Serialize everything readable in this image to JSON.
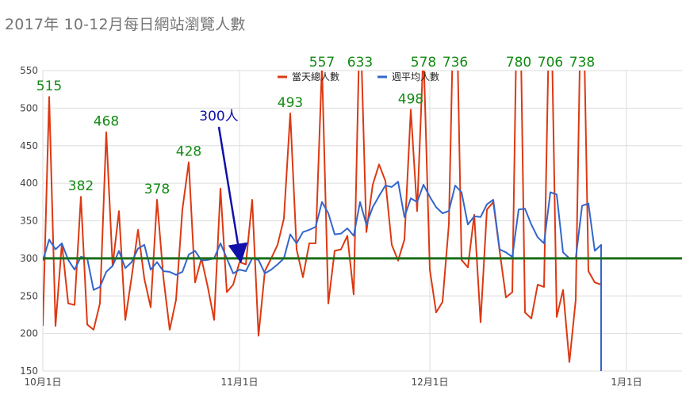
{
  "chart_data": {
    "type": "line",
    "title": "2017年 10-12月每日網站瀏覽人數",
    "ylim": [
      150,
      550
    ],
    "y_ticks": [
      150,
      200,
      250,
      300,
      350,
      400,
      450,
      500,
      550
    ],
    "x_range": [
      "2017-10-01",
      "2018-01-05"
    ],
    "x_ticks": [
      {
        "date": "2017-10-01",
        "label": "10月1日"
      },
      {
        "date": "2017-11-01",
        "label": "11月1日"
      },
      {
        "date": "2017-12-01",
        "label": "12月1日"
      },
      {
        "date": "2018-01-01",
        "label": "1月1日"
      }
    ],
    "grid": true,
    "legend_position": "top-right",
    "series": [
      {
        "name": "當天總人數",
        "color": "#dc3912",
        "points": [
          [
            "2017-10-01",
            210
          ],
          [
            "2017-10-02",
            515
          ],
          [
            "2017-10-03",
            210
          ],
          [
            "2017-10-04",
            320
          ],
          [
            "2017-10-05",
            240
          ],
          [
            "2017-10-06",
            238
          ],
          [
            "2017-10-07",
            382
          ],
          [
            "2017-10-08",
            212
          ],
          [
            "2017-10-09",
            205
          ],
          [
            "2017-10-10",
            240
          ],
          [
            "2017-10-11",
            468
          ],
          [
            "2017-10-12",
            290
          ],
          [
            "2017-10-13",
            363
          ],
          [
            "2017-10-14",
            218
          ],
          [
            "2017-10-15",
            275
          ],
          [
            "2017-10-16",
            338
          ],
          [
            "2017-10-17",
            273
          ],
          [
            "2017-10-18",
            235
          ],
          [
            "2017-10-19",
            378
          ],
          [
            "2017-10-20",
            275
          ],
          [
            "2017-10-21",
            205
          ],
          [
            "2017-10-22",
            245
          ],
          [
            "2017-10-23",
            365
          ],
          [
            "2017-10-24",
            428
          ],
          [
            "2017-10-25",
            268
          ],
          [
            "2017-10-26",
            300
          ],
          [
            "2017-10-27",
            262
          ],
          [
            "2017-10-28",
            218
          ],
          [
            "2017-10-29",
            393
          ],
          [
            "2017-10-30",
            255
          ],
          [
            "2017-10-31",
            265
          ],
          [
            "2017-11-01",
            295
          ],
          [
            "2017-11-02",
            292
          ],
          [
            "2017-11-03",
            378
          ],
          [
            "2017-11-04",
            197
          ],
          [
            "2017-11-05",
            283
          ],
          [
            "2017-11-06",
            300
          ],
          [
            "2017-11-07",
            318
          ],
          [
            "2017-11-08",
            353
          ],
          [
            "2017-11-09",
            493
          ],
          [
            "2017-11-10",
            312
          ],
          [
            "2017-11-11",
            275
          ],
          [
            "2017-11-12",
            320
          ],
          [
            "2017-11-13",
            320
          ],
          [
            "2017-11-14",
            557
          ],
          [
            "2017-11-15",
            240
          ],
          [
            "2017-11-16",
            310
          ],
          [
            "2017-11-17",
            312
          ],
          [
            "2017-11-18",
            330
          ],
          [
            "2017-11-19",
            252
          ],
          [
            "2017-11-20",
            633
          ],
          [
            "2017-11-21",
            335
          ],
          [
            "2017-11-22",
            398
          ],
          [
            "2017-11-23",
            425
          ],
          [
            "2017-11-24",
            403
          ],
          [
            "2017-11-25",
            318
          ],
          [
            "2017-11-26",
            297
          ],
          [
            "2017-11-27",
            325
          ],
          [
            "2017-11-28",
            498
          ],
          [
            "2017-11-29",
            363
          ],
          [
            "2017-11-30",
            578
          ],
          [
            "2017-12-01",
            285
          ],
          [
            "2017-12-02",
            228
          ],
          [
            "2017-12-03",
            242
          ],
          [
            "2017-12-04",
            345
          ],
          [
            "2017-12-05",
            736
          ],
          [
            "2017-12-06",
            298
          ],
          [
            "2017-12-07",
            288
          ],
          [
            "2017-12-08",
            358
          ],
          [
            "2017-12-09",
            215
          ],
          [
            "2017-12-10",
            365
          ],
          [
            "2017-12-11",
            375
          ],
          [
            "2017-12-12",
            310
          ],
          [
            "2017-12-13",
            248
          ],
          [
            "2017-12-14",
            255
          ],
          [
            "2017-12-15",
            780
          ],
          [
            "2017-12-16",
            228
          ],
          [
            "2017-12-17",
            220
          ],
          [
            "2017-12-18",
            265
          ],
          [
            "2017-12-19",
            262
          ],
          [
            "2017-12-20",
            706
          ],
          [
            "2017-12-21",
            222
          ],
          [
            "2017-12-22",
            258
          ],
          [
            "2017-12-23",
            162
          ],
          [
            "2017-12-24",
            245
          ],
          [
            "2017-12-25",
            738
          ],
          [
            "2017-12-26",
            283
          ],
          [
            "2017-12-27",
            268
          ],
          [
            "2017-12-28",
            265
          ]
        ]
      },
      {
        "name": "週平均人數",
        "color": "#3366cc",
        "points": [
          [
            "2017-10-01",
            297
          ],
          [
            "2017-10-02",
            325
          ],
          [
            "2017-10-03",
            312
          ],
          [
            "2017-10-04",
            320
          ],
          [
            "2017-10-05",
            298
          ],
          [
            "2017-10-06",
            285
          ],
          [
            "2017-10-07",
            302
          ],
          [
            "2017-10-08",
            300
          ],
          [
            "2017-10-09",
            258
          ],
          [
            "2017-10-10",
            262
          ],
          [
            "2017-10-11",
            282
          ],
          [
            "2017-10-12",
            290
          ],
          [
            "2017-10-13",
            310
          ],
          [
            "2017-10-14",
            287
          ],
          [
            "2017-10-15",
            295
          ],
          [
            "2017-10-16",
            313
          ],
          [
            "2017-10-17",
            318
          ],
          [
            "2017-10-18",
            285
          ],
          [
            "2017-10-19",
            295
          ],
          [
            "2017-10-20",
            283
          ],
          [
            "2017-10-21",
            282
          ],
          [
            "2017-10-22",
            278
          ],
          [
            "2017-10-23",
            282
          ],
          [
            "2017-10-24",
            305
          ],
          [
            "2017-10-25",
            310
          ],
          [
            "2017-10-26",
            297
          ],
          [
            "2017-10-27",
            298
          ],
          [
            "2017-10-28",
            300
          ],
          [
            "2017-10-29",
            320
          ],
          [
            "2017-10-30",
            300
          ],
          [
            "2017-10-31",
            280
          ],
          [
            "2017-11-01",
            285
          ],
          [
            "2017-11-02",
            283
          ],
          [
            "2017-11-03",
            300
          ],
          [
            "2017-11-04",
            298
          ],
          [
            "2017-11-05",
            280
          ],
          [
            "2017-11-06",
            285
          ],
          [
            "2017-11-07",
            292
          ],
          [
            "2017-11-08",
            300
          ],
          [
            "2017-11-09",
            332
          ],
          [
            "2017-11-10",
            320
          ],
          [
            "2017-11-11",
            335
          ],
          [
            "2017-11-12",
            338
          ],
          [
            "2017-11-13",
            342
          ],
          [
            "2017-11-14",
            375
          ],
          [
            "2017-11-15",
            360
          ],
          [
            "2017-11-16",
            332
          ],
          [
            "2017-11-17",
            333
          ],
          [
            "2017-11-18",
            340
          ],
          [
            "2017-11-19",
            330
          ],
          [
            "2017-11-20",
            375
          ],
          [
            "2017-11-21",
            345
          ],
          [
            "2017-11-22",
            368
          ],
          [
            "2017-11-23",
            383
          ],
          [
            "2017-11-24",
            397
          ],
          [
            "2017-11-25",
            395
          ],
          [
            "2017-11-26",
            402
          ],
          [
            "2017-11-27",
            355
          ],
          [
            "2017-11-28",
            380
          ],
          [
            "2017-11-29",
            375
          ],
          [
            "2017-11-30",
            398
          ],
          [
            "2017-12-01",
            382
          ],
          [
            "2017-12-02",
            368
          ],
          [
            "2017-12-03",
            360
          ],
          [
            "2017-12-04",
            363
          ],
          [
            "2017-12-05",
            397
          ],
          [
            "2017-12-06",
            388
          ],
          [
            "2017-12-07",
            345
          ],
          [
            "2017-12-08",
            356
          ],
          [
            "2017-12-09",
            355
          ],
          [
            "2017-12-10",
            372
          ],
          [
            "2017-12-11",
            378
          ],
          [
            "2017-12-12",
            312
          ],
          [
            "2017-12-13",
            308
          ],
          [
            "2017-12-14",
            302
          ],
          [
            "2017-12-15",
            365
          ],
          [
            "2017-12-16",
            366
          ],
          [
            "2017-12-17",
            345
          ],
          [
            "2017-12-18",
            328
          ],
          [
            "2017-12-19",
            320
          ],
          [
            "2017-12-20",
            388
          ],
          [
            "2017-12-21",
            385
          ],
          [
            "2017-12-22",
            308
          ],
          [
            "2017-12-23",
            300
          ],
          [
            "2017-12-24",
            300
          ],
          [
            "2017-12-25",
            370
          ],
          [
            "2017-12-26",
            373
          ],
          [
            "2017-12-27",
            310
          ],
          [
            "2017-12-28",
            318
          ],
          [
            "2017-12-28",
            150
          ]
        ]
      }
    ],
    "reference_line": {
      "value": 300,
      "color": "#1a6e1a"
    },
    "annotations": [
      {
        "text": "515",
        "date": "2017-10-02",
        "value": 515,
        "color": "#138a13"
      },
      {
        "text": "382",
        "date": "2017-10-07",
        "value": 382,
        "color": "#138a13"
      },
      {
        "text": "468",
        "date": "2017-10-11",
        "value": 468,
        "color": "#138a13"
      },
      {
        "text": "378",
        "date": "2017-10-19",
        "value": 378,
        "color": "#138a13"
      },
      {
        "text": "428",
        "date": "2017-10-24",
        "value": 428,
        "color": "#138a13"
      },
      {
        "text": "493",
        "date": "2017-11-09",
        "value": 493,
        "color": "#138a13"
      },
      {
        "text": "557",
        "date": "2017-11-14",
        "value": 557,
        "color": "#138a13"
      },
      {
        "text": "633",
        "date": "2017-11-20",
        "value": 633,
        "color": "#138a13"
      },
      {
        "text": "498",
        "date": "2017-11-28",
        "value": 498,
        "color": "#138a13"
      },
      {
        "text": "578",
        "date": "2017-11-30",
        "value": 578,
        "color": "#138a13"
      },
      {
        "text": "736",
        "date": "2017-12-05",
        "value": 736,
        "color": "#138a13"
      },
      {
        "text": "780",
        "date": "2017-12-15",
        "value": 780,
        "color": "#138a13"
      },
      {
        "text": "706",
        "date": "2017-12-20",
        "value": 706,
        "color": "#138a13"
      },
      {
        "text": "738",
        "date": "2017-12-25",
        "value": 738,
        "color": "#138a13"
      }
    ],
    "callout": {
      "text": "300人",
      "date": "2017-11-01",
      "value": 300,
      "color": "#1010aa"
    }
  }
}
